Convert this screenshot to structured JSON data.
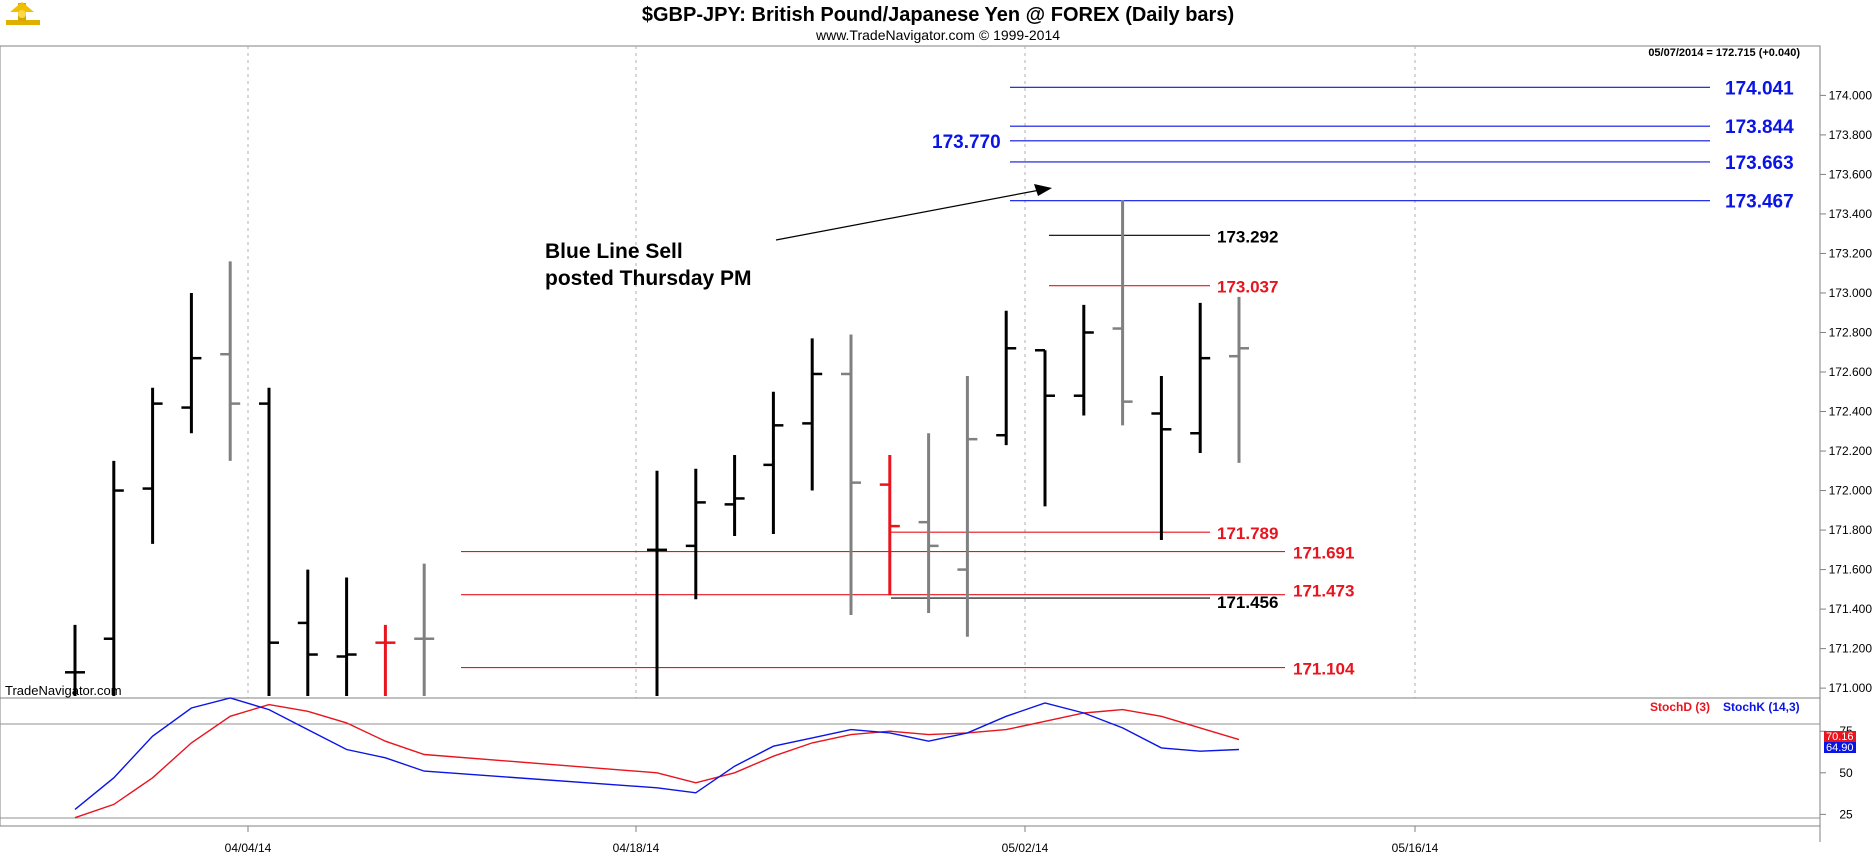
{
  "header": {
    "title": "$GBP-JPY:  British Pound/Japanese Yen @ FOREX  (Daily bars)",
    "subtitle": "www.TradeNavigator.com © 1999-2014",
    "readout": "05/07/2014 = 172.715 (+0.040)"
  },
  "watermark": "TradeNavigator.com",
  "colors": {
    "up": "#000000",
    "flat": "#808080",
    "red": "#e8141e",
    "blue": "#0a14e6",
    "frame": "#808080",
    "grid": "#b0b0b0"
  },
  "chart_data": [
    {
      "type": "ohlc",
      "title": "$GBP-JPY:  British Pound/Japanese Yen @ FOREX  (Daily bars)",
      "xaxis_ticks": [
        "04/04/14",
        "04/18/14",
        "05/02/14",
        "05/16/14"
      ],
      "yaxis_ticks": [
        "171.000",
        "171.200",
        "171.400",
        "171.600",
        "171.800",
        "172.000",
        "172.200",
        "172.400",
        "172.600",
        "172.800",
        "173.000",
        "173.200",
        "173.400",
        "173.600",
        "173.800",
        "174.000"
      ],
      "ylim": [
        170.95,
        174.25
      ],
      "bars": [
        {
          "date": "03/26/14",
          "open": 171.08,
          "high": 171.32,
          "low": 170.9,
          "close": 171.08,
          "color": "black"
        },
        {
          "date": "03/27/14",
          "open": 171.25,
          "high": 172.15,
          "low": 170.9,
          "close": 172.0,
          "color": "black"
        },
        {
          "date": "03/28/14",
          "open": 172.01,
          "high": 172.52,
          "low": 171.73,
          "close": 172.44,
          "color": "black"
        },
        {
          "date": "03/31/14",
          "open": 172.42,
          "high": 173.0,
          "low": 172.29,
          "close": 172.67,
          "color": "black"
        },
        {
          "date": "04/01/14",
          "open": 172.69,
          "high": 173.16,
          "low": 172.15,
          "close": 172.44,
          "color": "gray"
        },
        {
          "date": "04/02/14",
          "open": 172.44,
          "high": 172.52,
          "low": 170.9,
          "close": 171.23,
          "color": "black"
        },
        {
          "date": "04/03/14",
          "open": 171.33,
          "high": 171.6,
          "low": 170.9,
          "close": 171.17,
          "color": "black"
        },
        {
          "date": "04/04/14",
          "open": 171.16,
          "high": 171.56,
          "low": 170.9,
          "close": 171.17,
          "color": "black"
        },
        {
          "date": "04/07/14",
          "open": 171.23,
          "high": 171.32,
          "low": 170.9,
          "close": 171.23,
          "color": "red"
        },
        {
          "date": "04/08/14",
          "open": 171.25,
          "high": 171.63,
          "low": 170.9,
          "close": 171.25,
          "color": "gray"
        },
        {
          "date": "04/14/14",
          "open": 171.7,
          "high": 172.1,
          "low": 170.9,
          "close": 171.7,
          "color": "black"
        },
        {
          "date": "04/15/14",
          "open": 171.72,
          "high": 172.11,
          "low": 171.45,
          "close": 171.94,
          "color": "black"
        },
        {
          "date": "04/16/14",
          "open": 171.93,
          "high": 172.18,
          "low": 171.77,
          "close": 171.96,
          "color": "black"
        },
        {
          "date": "04/17/14",
          "open": 172.13,
          "high": 172.5,
          "low": 171.78,
          "close": 172.33,
          "color": "black"
        },
        {
          "date": "04/18/14",
          "open": 172.34,
          "high": 172.77,
          "low": 172.0,
          "close": 172.59,
          "color": "black"
        },
        {
          "date": "04/21/14",
          "open": 172.59,
          "high": 172.79,
          "low": 171.37,
          "close": 172.04,
          "color": "gray"
        },
        {
          "date": "04/22/14",
          "open": 172.03,
          "high": 172.18,
          "low": 171.47,
          "close": 171.82,
          "color": "red"
        },
        {
          "date": "04/23/14",
          "open": 171.84,
          "high": 172.29,
          "low": 171.38,
          "close": 171.72,
          "color": "gray"
        },
        {
          "date": "04/24/14",
          "open": 171.6,
          "high": 172.58,
          "low": 171.26,
          "close": 172.26,
          "color": "gray"
        },
        {
          "date": "04/25/14",
          "open": 172.28,
          "high": 172.91,
          "low": 172.23,
          "close": 172.72,
          "color": "black"
        },
        {
          "date": "04/28/14",
          "open": 172.71,
          "high": 172.71,
          "low": 171.92,
          "close": 172.48,
          "color": "black"
        },
        {
          "date": "04/29/14",
          "open": 172.48,
          "high": 172.94,
          "low": 172.38,
          "close": 172.8,
          "color": "black"
        },
        {
          "date": "04/30/14",
          "open": 172.82,
          "high": 173.47,
          "low": 172.33,
          "close": 172.45,
          "color": "gray"
        },
        {
          "date": "05/01/14",
          "open": 172.39,
          "high": 172.58,
          "low": 171.75,
          "close": 172.31,
          "color": "black"
        },
        {
          "date": "05/02/14",
          "open": 172.29,
          "high": 172.95,
          "low": 172.19,
          "close": 172.67,
          "color": "black"
        },
        {
          "date": "05/05/14",
          "open": 172.68,
          "high": 172.98,
          "low": 172.14,
          "close": 172.72,
          "color": "gray"
        }
      ],
      "levels": [
        {
          "value": 174.041,
          "label": "174.041",
          "color": "blue"
        },
        {
          "value": 173.844,
          "label": "173.844",
          "color": "blue"
        },
        {
          "value": 173.77,
          "label": "173.770",
          "color": "blue"
        },
        {
          "value": 173.663,
          "label": "173.663",
          "color": "blue"
        },
        {
          "value": 173.467,
          "label": "173.467",
          "color": "blue"
        },
        {
          "value": 173.292,
          "label": "173.292",
          "color": "black"
        },
        {
          "value": 173.037,
          "label": "173.037",
          "color": "red"
        },
        {
          "value": 171.789,
          "label": "171.789",
          "color": "red"
        },
        {
          "value": 171.691,
          "label": "171.691",
          "color": "red"
        },
        {
          "value": 171.473,
          "label": "171.473",
          "color": "red"
        },
        {
          "value": 171.456,
          "label": "171.456",
          "color": "black"
        },
        {
          "value": 171.104,
          "label": "171.104",
          "color": "red"
        }
      ],
      "annotation": {
        "lines": [
          "Blue Line Sell",
          "posted Thursday PM"
        ],
        "points_to": "04/30/14 high 173.467"
      }
    },
    {
      "type": "line",
      "legend": [
        "StochD (3)",
        "StochK (14,3)"
      ],
      "yaxis_ticks": [
        "25",
        "50",
        "75"
      ],
      "ylim": [
        18,
        95
      ],
      "series": [
        {
          "name": "StochD (3)",
          "color": "red",
          "values": [
            23,
            31,
            47,
            68,
            84,
            91,
            87,
            80,
            69,
            61,
            50,
            44,
            50,
            60,
            68,
            73,
            75,
            73,
            74,
            76,
            81,
            86,
            88,
            84,
            77,
            70
          ]
        },
        {
          "name": "StochK (14,3)",
          "color": "blue",
          "values": [
            28,
            47,
            72,
            89,
            95,
            88,
            76,
            64,
            59,
            51,
            41,
            38,
            54,
            66,
            71,
            76,
            74,
            69,
            74,
            84,
            92,
            86,
            77,
            65,
            63,
            64
          ]
        }
      ],
      "last_values": [
        "70.16",
        "64.90"
      ]
    }
  ]
}
